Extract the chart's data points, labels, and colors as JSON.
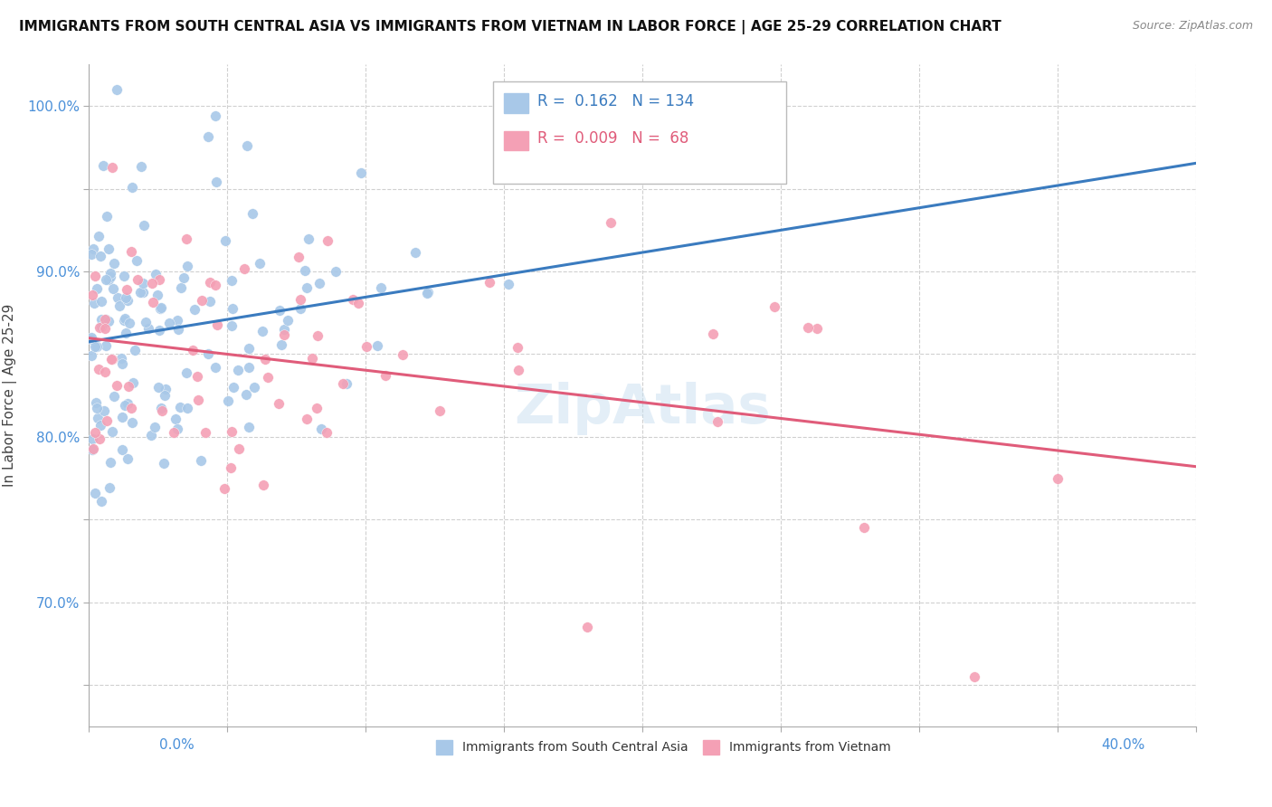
{
  "title": "IMMIGRANTS FROM SOUTH CENTRAL ASIA VS IMMIGRANTS FROM VIETNAM IN LABOR FORCE | AGE 25-29 CORRELATION CHART",
  "source": "Source: ZipAtlas.com",
  "ylabel": "In Labor Force | Age 25-29",
  "y_ticks": [
    0.65,
    0.7,
    0.75,
    0.8,
    0.85,
    0.9,
    0.95,
    1.0
  ],
  "y_tick_labels": [
    "",
    "70.0%",
    "",
    "80.0%",
    "",
    "90.0%",
    "",
    "100.0%"
  ],
  "xlim": [
    0.0,
    0.4
  ],
  "ylim": [
    0.625,
    1.025
  ],
  "r_blue": 0.162,
  "n_blue": 134,
  "r_pink": 0.009,
  "n_pink": 68,
  "blue_color": "#a8c8e8",
  "pink_color": "#f4a0b5",
  "blue_line_color": "#3a7bbf",
  "pink_line_color": "#e05c7a",
  "watermark": "ZipAtlas",
  "legend_label_blue": "Immigrants from South Central Asia",
  "legend_label_pink": "Immigrants from Vietnam"
}
